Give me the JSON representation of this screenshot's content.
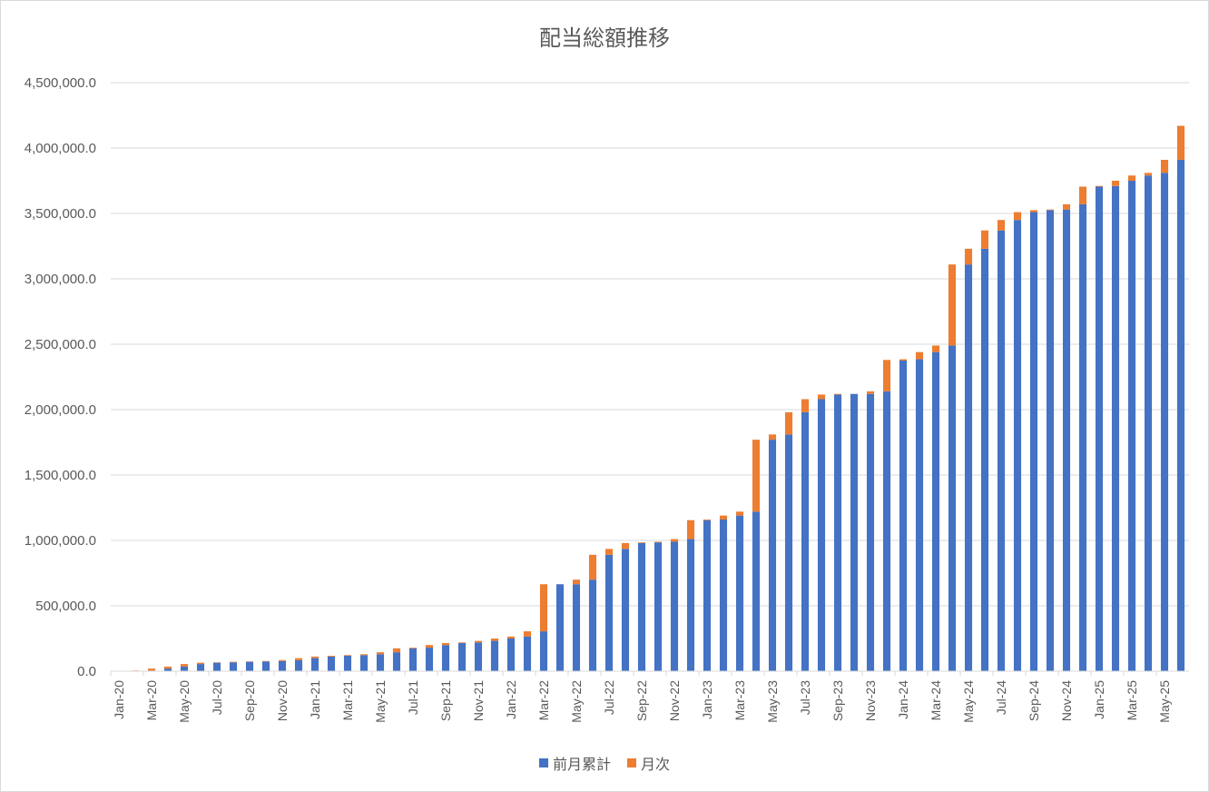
{
  "chart_data": {
    "type": "bar",
    "stacked": true,
    "title": "配当総額推移",
    "ylim": [
      0,
      4500000
    ],
    "yticks": [
      0,
      500000,
      1000000,
      1500000,
      2000000,
      2500000,
      3000000,
      3500000,
      4000000,
      4500000
    ],
    "ytick_labels": [
      "0.0",
      "500,000.0",
      "1,000,000.0",
      "1,500,000.0",
      "2,000,000.0",
      "2,500,000.0",
      "3,000,000.0",
      "3,500,000.0",
      "4,000,000.0",
      "4,500,000.0"
    ],
    "grid": true,
    "legend_position": "bottom",
    "categories": [
      "Jan-20",
      "Feb-20",
      "Mar-20",
      "Apr-20",
      "May-20",
      "Jun-20",
      "Jul-20",
      "Aug-20",
      "Sep-20",
      "Oct-20",
      "Nov-20",
      "Dec-20",
      "Jan-21",
      "Feb-21",
      "Mar-21",
      "Apr-21",
      "May-21",
      "Jun-21",
      "Jul-21",
      "Aug-21",
      "Sep-21",
      "Oct-21",
      "Nov-21",
      "Dec-21",
      "Jan-22",
      "Feb-22",
      "Mar-22",
      "Apr-22",
      "May-22",
      "Jun-22",
      "Jul-22",
      "Aug-22",
      "Sep-22",
      "Oct-22",
      "Nov-22",
      "Dec-22",
      "Jan-23",
      "Feb-23",
      "Mar-23",
      "Apr-23",
      "May-23",
      "Jun-23",
      "Jul-23",
      "Aug-23",
      "Sep-23",
      "Oct-23",
      "Nov-23",
      "Dec-23",
      "Jan-24",
      "Feb-24",
      "Mar-24",
      "Apr-24",
      "May-24",
      "Jun-24",
      "Jul-24",
      "Aug-24",
      "Sep-24",
      "Oct-24",
      "Nov-24",
      "Dec-24",
      "Jan-25",
      "Feb-25",
      "Mar-25",
      "Apr-25",
      "May-25",
      "Jun-25"
    ],
    "tick_labels": [
      "Jan-20",
      "Mar-20",
      "May-20",
      "Jul-20",
      "Sep-20",
      "Nov-20",
      "Jan-21",
      "Mar-21",
      "May-21",
      "Jul-21",
      "Sep-21",
      "Nov-21",
      "Jan-22",
      "Mar-22",
      "May-22",
      "Jul-22",
      "Sep-22",
      "Nov-22",
      "Jan-23",
      "Mar-23",
      "May-23",
      "Jul-23",
      "Sep-23",
      "Nov-23",
      "Jan-24",
      "Mar-24",
      "May-24",
      "Jul-24",
      "Sep-24",
      "Nov-24",
      "Jan-25",
      "Mar-25",
      "May-25"
    ],
    "series": [
      {
        "name": "前月累計",
        "color": "#4472C4",
        "values": [
          0,
          0,
          5000,
          20000,
          35000,
          55000,
          65000,
          68000,
          72000,
          75000,
          78000,
          85000,
          100000,
          112000,
          118000,
          123000,
          130000,
          145000,
          175000,
          180000,
          200000,
          215000,
          220000,
          232000,
          250000,
          265000,
          305000,
          665000,
          665000,
          700000,
          890000,
          935000,
          980000,
          985000,
          990000,
          1010000,
          1155000,
          1160000,
          1190000,
          1220000,
          1770000,
          1810000,
          1980000,
          2080000,
          2115000,
          2120000,
          2120000,
          2140000,
          2375000,
          2385000,
          2440000,
          2490000,
          3110000,
          3230000,
          3370000,
          3450000,
          3510000,
          3525000,
          3530000,
          3570000,
          3705000,
          3710000,
          3750000,
          3790000,
          3810000,
          3910000
        ]
      },
      {
        "name": "月次",
        "color": "#ED7D31",
        "values": [
          0,
          5000,
          15000,
          15000,
          20000,
          10000,
          3000,
          4000,
          3000,
          3000,
          7000,
          15000,
          12000,
          6000,
          5000,
          7000,
          15000,
          30000,
          5000,
          20000,
          15000,
          5000,
          12000,
          18000,
          15000,
          40000,
          360000,
          0,
          35000,
          190000,
          45000,
          45000,
          5000,
          5000,
          20000,
          145000,
          5000,
          30000,
          30000,
          550000,
          40000,
          170000,
          100000,
          35000,
          5000,
          0,
          20000,
          240000,
          10000,
          55000,
          50000,
          620000,
          120000,
          140000,
          80000,
          60000,
          15000,
          5000,
          40000,
          135000,
          5000,
          40000,
          40000,
          20000,
          100000,
          260000
        ]
      }
    ]
  }
}
